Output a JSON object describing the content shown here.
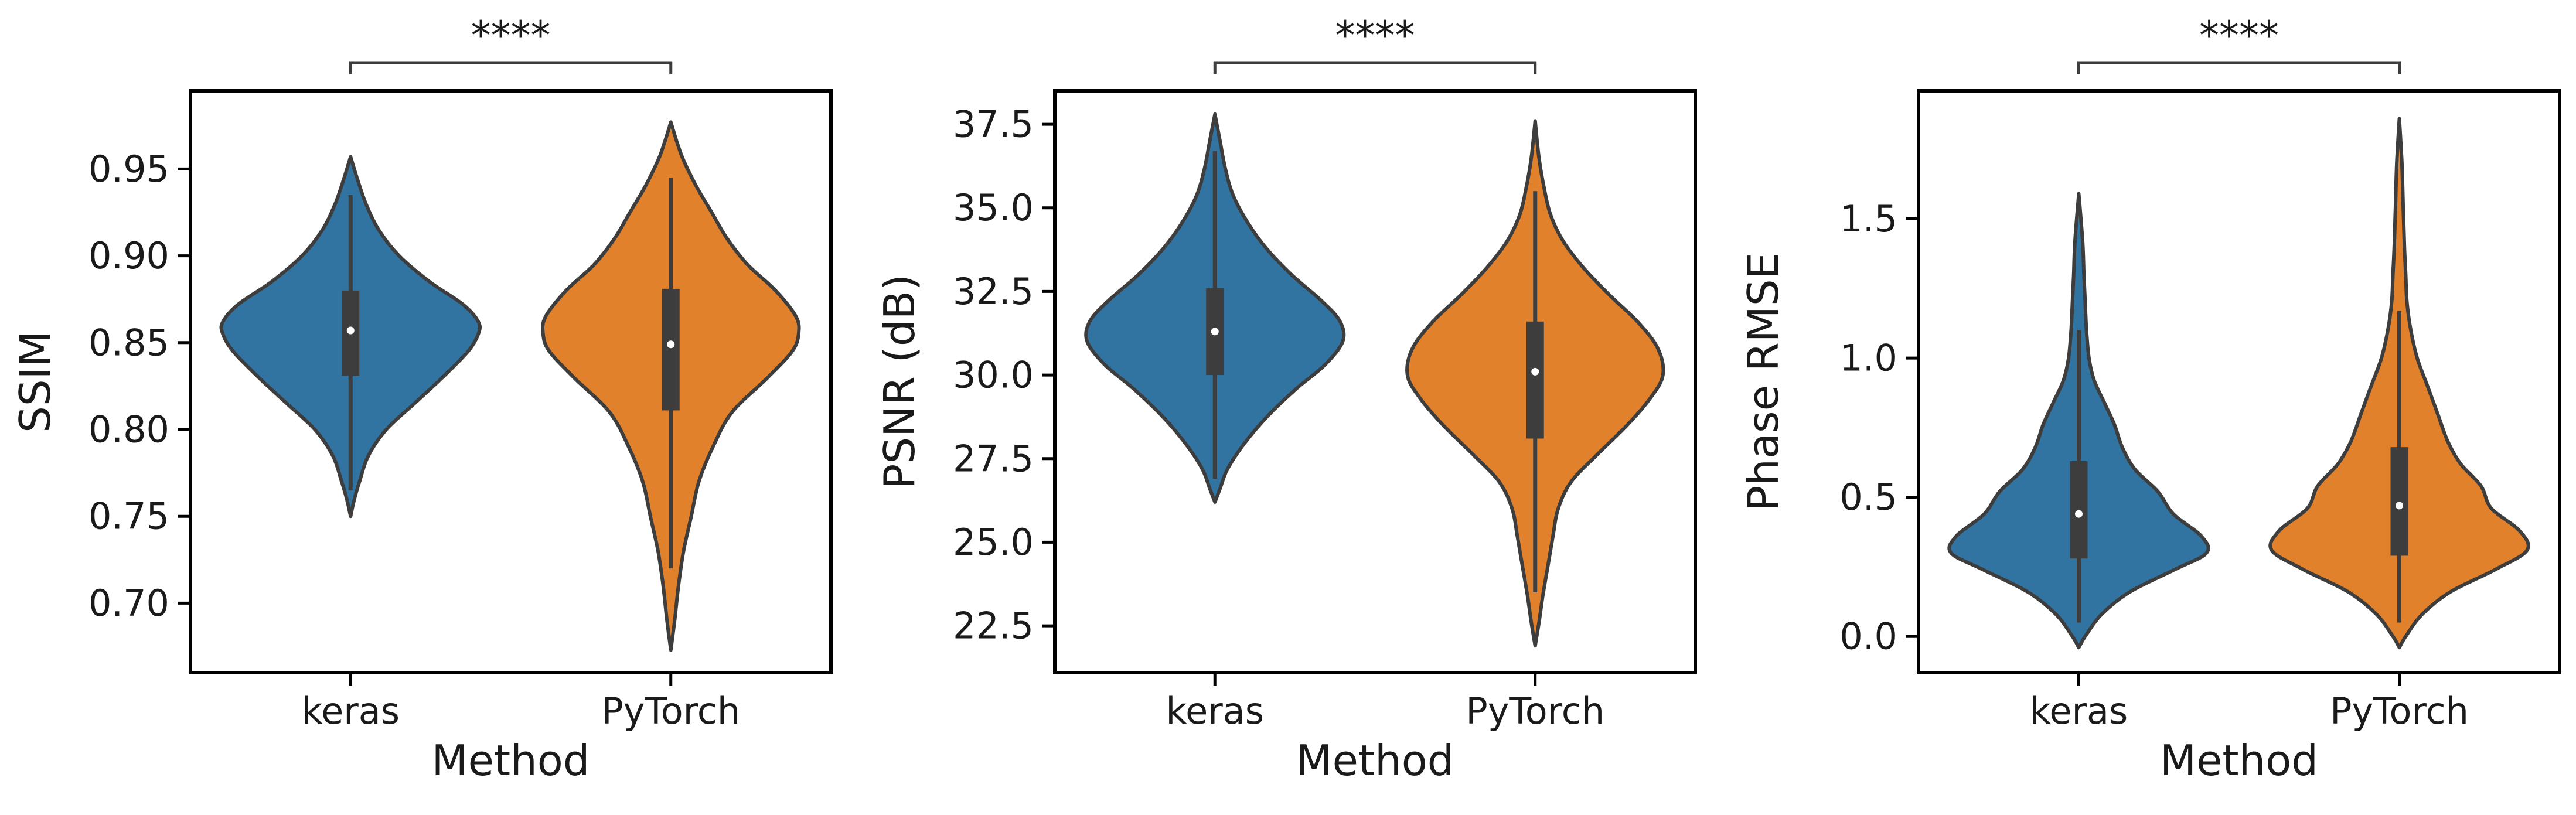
{
  "figure": {
    "colors": {
      "keras": "#3274a1",
      "PyTorch": "#e1812c",
      "outline": "#3d3d3d",
      "box": "#3d3d3d",
      "median": "#ffffff"
    }
  },
  "chart_data": [
    {
      "type": "violin",
      "categories": [
        "keras",
        "PyTorch"
      ],
      "xlabel": "Method",
      "ylabel": "SSIM",
      "ylim": [
        0.66,
        0.995
      ],
      "yticks": [
        0.7,
        0.75,
        0.8,
        0.85,
        0.9,
        0.95
      ],
      "ytick_labels": [
        "0.70",
        "0.75",
        "0.80",
        "0.85",
        "0.90",
        "0.95"
      ],
      "significance": "****",
      "series": [
        {
          "name": "keras",
          "median": 0.857,
          "q1": 0.831,
          "q3": 0.88,
          "whisker_low": 0.765,
          "whisker_high": 0.935,
          "density": [
            [
              0.75,
              0.0
            ],
            [
              0.76,
              0.03
            ],
            [
              0.77,
              0.07
            ],
            [
              0.785,
              0.14
            ],
            [
              0.8,
              0.28
            ],
            [
              0.815,
              0.5
            ],
            [
              0.83,
              0.72
            ],
            [
              0.845,
              0.92
            ],
            [
              0.855,
              1.0
            ],
            [
              0.862,
              1.0
            ],
            [
              0.872,
              0.88
            ],
            [
              0.885,
              0.62
            ],
            [
              0.9,
              0.38
            ],
            [
              0.915,
              0.22
            ],
            [
              0.93,
              0.12
            ],
            [
              0.945,
              0.05
            ],
            [
              0.957,
              0.0
            ]
          ]
        },
        {
          "name": "PyTorch",
          "median": 0.849,
          "q1": 0.811,
          "q3": 0.881,
          "whisker_low": 0.72,
          "whisker_high": 0.945,
          "density": [
            [
              0.673,
              0.0
            ],
            [
              0.69,
              0.03
            ],
            [
              0.71,
              0.06
            ],
            [
              0.73,
              0.1
            ],
            [
              0.75,
              0.16
            ],
            [
              0.77,
              0.22
            ],
            [
              0.79,
              0.33
            ],
            [
              0.81,
              0.48
            ],
            [
              0.83,
              0.76
            ],
            [
              0.845,
              0.95
            ],
            [
              0.855,
              1.0
            ],
            [
              0.865,
              0.98
            ],
            [
              0.88,
              0.82
            ],
            [
              0.895,
              0.6
            ],
            [
              0.91,
              0.44
            ],
            [
              0.925,
              0.32
            ],
            [
              0.94,
              0.2
            ],
            [
              0.955,
              0.1
            ],
            [
              0.965,
              0.05
            ],
            [
              0.977,
              0.0
            ]
          ]
        }
      ]
    },
    {
      "type": "violin",
      "categories": [
        "keras",
        "PyTorch"
      ],
      "xlabel": "Method",
      "ylabel": "PSNR (dB)",
      "ylim": [
        21.1,
        38.5
      ],
      "yticks": [
        22.5,
        25.0,
        27.5,
        30.0,
        32.5,
        35.0,
        37.5
      ],
      "ytick_labels": [
        "22.5",
        "25.0",
        "27.5",
        "30.0",
        "32.5",
        "35.0",
        "37.5"
      ],
      "significance": "****",
      "series": [
        {
          "name": "keras",
          "median": 31.3,
          "q1": 30.0,
          "q3": 32.6,
          "whisker_low": 26.9,
          "whisker_high": 36.7,
          "density": [
            [
              26.2,
              0.0
            ],
            [
              26.6,
              0.04
            ],
            [
              27.2,
              0.1
            ],
            [
              28.0,
              0.24
            ],
            [
              28.8,
              0.42
            ],
            [
              29.6,
              0.64
            ],
            [
              30.3,
              0.86
            ],
            [
              31.0,
              1.0
            ],
            [
              31.6,
              0.98
            ],
            [
              32.2,
              0.84
            ],
            [
              33.0,
              0.6
            ],
            [
              33.8,
              0.4
            ],
            [
              34.6,
              0.25
            ],
            [
              35.4,
              0.14
            ],
            [
              36.2,
              0.08
            ],
            [
              37.0,
              0.04
            ],
            [
              37.8,
              0.0
            ]
          ]
        },
        {
          "name": "PyTorch",
          "median": 30.1,
          "q1": 28.1,
          "q3": 31.6,
          "whisker_low": 23.5,
          "whisker_high": 35.5,
          "density": [
            [
              21.9,
              0.0
            ],
            [
              22.6,
              0.03
            ],
            [
              23.4,
              0.06
            ],
            [
              24.3,
              0.1
            ],
            [
              25.2,
              0.14
            ],
            [
              26.0,
              0.18
            ],
            [
              26.8,
              0.28
            ],
            [
              27.6,
              0.48
            ],
            [
              28.5,
              0.72
            ],
            [
              29.3,
              0.9
            ],
            [
              30.0,
              1.0
            ],
            [
              30.8,
              0.96
            ],
            [
              31.6,
              0.8
            ],
            [
              32.4,
              0.58
            ],
            [
              33.2,
              0.38
            ],
            [
              34.0,
              0.22
            ],
            [
              34.8,
              0.12
            ],
            [
              35.6,
              0.07
            ],
            [
              36.5,
              0.03
            ],
            [
              37.6,
              0.0
            ]
          ]
        }
      ]
    },
    {
      "type": "violin",
      "categories": [
        "keras",
        "PyTorch"
      ],
      "xlabel": "Method",
      "ylabel": "Phase RMSE",
      "ylim": [
        -0.13,
        1.96
      ],
      "yticks": [
        0.0,
        0.5,
        1.0,
        1.5
      ],
      "ytick_labels": [
        "0.0",
        "0.5",
        "1.0",
        "1.5"
      ],
      "significance": "****",
      "series": [
        {
          "name": "keras",
          "median": 0.44,
          "q1": 0.28,
          "q3": 0.63,
          "whisker_low": 0.05,
          "whisker_high": 1.1,
          "density": [
            [
              -0.04,
              0.0
            ],
            [
              0.0,
              0.05
            ],
            [
              0.08,
              0.18
            ],
            [
              0.16,
              0.4
            ],
            [
              0.24,
              0.75
            ],
            [
              0.3,
              1.0
            ],
            [
              0.36,
              0.96
            ],
            [
              0.44,
              0.74
            ],
            [
              0.52,
              0.62
            ],
            [
              0.6,
              0.44
            ],
            [
              0.68,
              0.34
            ],
            [
              0.76,
              0.28
            ],
            [
              0.84,
              0.2
            ],
            [
              0.92,
              0.12
            ],
            [
              1.0,
              0.08
            ],
            [
              1.1,
              0.06
            ],
            [
              1.2,
              0.05
            ],
            [
              1.3,
              0.04
            ],
            [
              1.42,
              0.03
            ],
            [
              1.59,
              0.0
            ]
          ]
        },
        {
          "name": "PyTorch",
          "median": 0.47,
          "q1": 0.29,
          "q3": 0.68,
          "whisker_low": 0.05,
          "whisker_high": 1.17,
          "density": [
            [
              -0.04,
              0.0
            ],
            [
              0.0,
              0.05
            ],
            [
              0.08,
              0.18
            ],
            [
              0.16,
              0.4
            ],
            [
              0.24,
              0.75
            ],
            [
              0.31,
              1.0
            ],
            [
              0.38,
              0.94
            ],
            [
              0.46,
              0.72
            ],
            [
              0.54,
              0.64
            ],
            [
              0.62,
              0.48
            ],
            [
              0.7,
              0.38
            ],
            [
              0.8,
              0.3
            ],
            [
              0.9,
              0.22
            ],
            [
              1.0,
              0.14
            ],
            [
              1.1,
              0.09
            ],
            [
              1.2,
              0.06
            ],
            [
              1.3,
              0.05
            ],
            [
              1.4,
              0.04
            ],
            [
              1.55,
              0.03
            ],
            [
              1.7,
              0.02
            ],
            [
              1.86,
              0.0
            ]
          ]
        }
      ]
    }
  ]
}
